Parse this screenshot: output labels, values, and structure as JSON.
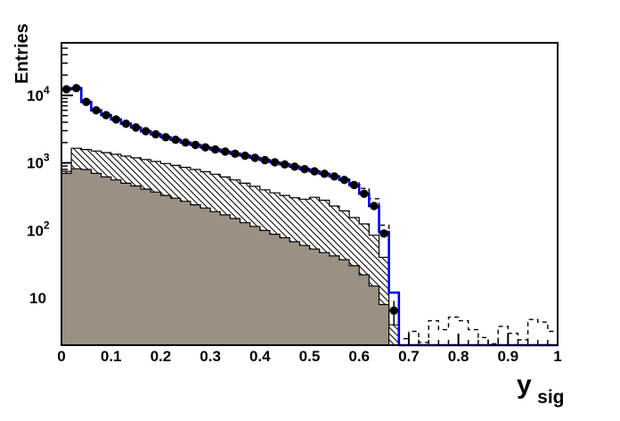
{
  "chart_data": {
    "type": "histogram-overlay",
    "title": "",
    "ylabel": "Entries",
    "xlabel_main": "y",
    "xlabel_sub": "sig",
    "y_scale": "log",
    "xlim": [
      0,
      1
    ],
    "ylim": [
      2,
      60000
    ],
    "bin_width": 0.02,
    "grid": false,
    "legend": "none",
    "x_major_ticks": [
      {
        "value": 0,
        "label": "0"
      },
      {
        "value": 0.1,
        "label": "0.1"
      },
      {
        "value": 0.2,
        "label": "0.2"
      },
      {
        "value": 0.3,
        "label": "0.3"
      },
      {
        "value": 0.4,
        "label": "0.4"
      },
      {
        "value": 0.5,
        "label": "0.5"
      },
      {
        "value": 0.6,
        "label": "0.6"
      },
      {
        "value": 0.7,
        "label": "0.7"
      },
      {
        "value": 0.8,
        "label": "0.8"
      },
      {
        "value": 0.9,
        "label": "0.9"
      },
      {
        "value": 1,
        "label": "1"
      }
    ],
    "x_minor_tick_step": 0.02,
    "y_major_ticks": [
      {
        "value": 10,
        "main": "10",
        "sup": ""
      },
      {
        "value": 100,
        "main": "10",
        "sup": "2"
      },
      {
        "value": 1000,
        "main": "10",
        "sup": "3"
      },
      {
        "value": 10000,
        "main": "10",
        "sup": "4"
      }
    ],
    "series": [
      {
        "name": "hatched-background-histogram",
        "style": "step-filled-hatched",
        "fill": "hatch-diagonal",
        "line_color": "#000000",
        "x_start": 0,
        "values": [
          750,
          1650,
          1580,
          1500,
          1420,
          1340,
          1260,
          1190,
          1120,
          1050,
          980,
          920,
          860,
          800,
          740,
          680,
          620,
          560,
          500,
          450,
          400,
          360,
          330,
          305,
          290,
          310,
          280,
          230,
          195,
          155,
          125,
          85,
          40,
          4
        ]
      },
      {
        "name": "solid-gray-histogram",
        "style": "step-filled-solid",
        "fill_color": "#9a9083",
        "line_color": "#000000",
        "x_start": 0,
        "values": [
          700,
          820,
          800,
          700,
          620,
          560,
          500,
          455,
          410,
          370,
          330,
          300,
          270,
          240,
          215,
          190,
          170,
          150,
          130,
          115,
          100,
          88,
          78,
          68,
          60,
          53,
          47,
          42,
          37,
          30,
          22,
          15,
          8
        ]
      },
      {
        "name": "dashed-histogram",
        "style": "step-dashed-line",
        "line_color": "#000000",
        "x_start": 0,
        "values": [
          12300,
          12800,
          8000,
          6000,
          5100,
          4400,
          3800,
          3350,
          2950,
          2650,
          2400,
          2200,
          2000,
          1850,
          1700,
          1580,
          1470,
          1370,
          1280,
          1190,
          1100,
          1020,
          950,
          880,
          810,
          750,
          690,
          630,
          580,
          510,
          420,
          295,
          120,
          12,
          2.5,
          3.2,
          2.2,
          4.6,
          3.4,
          5.2,
          4.6,
          3.4,
          2.6,
          2.1,
          3.8,
          3.0,
          2.4,
          4.8,
          4.4,
          3.2
        ]
      },
      {
        "name": "blue-histogram",
        "style": "step-solid-line",
        "line_color": "#0000ee",
        "x_start": 0,
        "values": [
          12300,
          12800,
          8000,
          6000,
          5100,
          4400,
          3800,
          3350,
          2950,
          2650,
          2400,
          2200,
          2000,
          1850,
          1700,
          1580,
          1470,
          1370,
          1280,
          1190,
          1100,
          1020,
          950,
          880,
          810,
          750,
          690,
          630,
          560,
          470,
          350,
          230,
          95,
          12,
          0,
          0,
          0,
          0,
          0,
          0,
          0,
          0,
          0,
          0,
          0,
          0,
          0,
          0,
          0,
          0
        ]
      },
      {
        "name": "data-points",
        "style": "points-error-bars",
        "marker": "filled-circle",
        "marker_color": "#000000",
        "x": [
          0.01,
          0.03,
          0.05,
          0.07,
          0.09,
          0.11,
          0.13,
          0.15,
          0.17,
          0.19,
          0.21,
          0.23,
          0.25,
          0.27,
          0.29,
          0.31,
          0.33,
          0.35,
          0.37,
          0.39,
          0.41,
          0.43,
          0.45,
          0.47,
          0.49,
          0.51,
          0.53,
          0.55,
          0.57,
          0.59,
          0.61,
          0.63,
          0.65,
          0.67
        ],
        "y": [
          12300,
          12800,
          8000,
          6000,
          5100,
          4400,
          3800,
          3350,
          2950,
          2650,
          2400,
          2200,
          2000,
          1850,
          1700,
          1580,
          1470,
          1370,
          1280,
          1190,
          1100,
          1020,
          950,
          880,
          810,
          750,
          690,
          630,
          560,
          470,
          350,
          230,
          90,
          6.5
        ]
      }
    ]
  }
}
